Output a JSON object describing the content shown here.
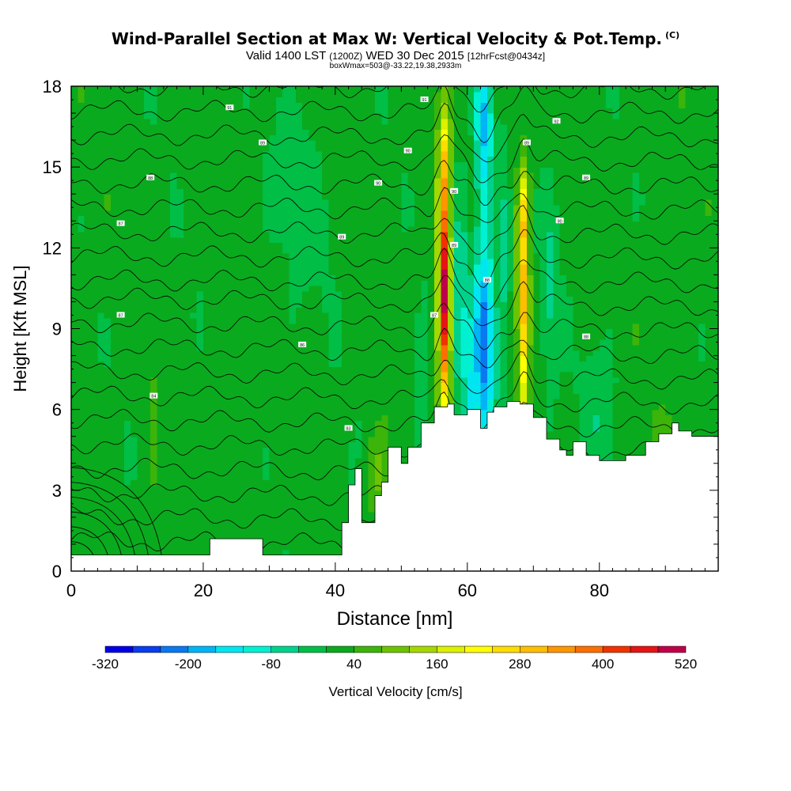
{
  "header": {
    "title": "Wind-Parallel Section at Max W: Vertical Velocity & Pot.Temp.",
    "title_tag": "(C)",
    "valid_main": "Valid 1400 LST",
    "valid_utc": "(1200Z)",
    "valid_date": "WED 30 Dec 2015",
    "forecast": "[12hrFcst@0434z]",
    "box_info": "boxWmax=503@-33.22,19.38,2933m"
  },
  "chart_data": {
    "type": "heatmap",
    "title": "Wind-Parallel Section at Max W: Vertical Velocity & Pot.Temp.",
    "xlabel": "Distance [nm]",
    "ylabel": "Height [Kft MSL]",
    "xlim": [
      0,
      98
    ],
    "ylim": [
      0,
      18
    ],
    "x_ticks": [
      0,
      20,
      40,
      60,
      80
    ],
    "y_ticks": [
      0,
      3,
      6,
      9,
      12,
      15,
      18
    ],
    "colorbar": {
      "label": "Vertical Velocity [cm/s]",
      "tick_labels": [
        "-320",
        "-200",
        "-80",
        "40",
        "160",
        "280",
        "400",
        "520"
      ],
      "levels": [
        -320,
        -280,
        -240,
        -200,
        -160,
        -120,
        -80,
        -40,
        0,
        40,
        80,
        120,
        160,
        200,
        240,
        280,
        320,
        360,
        400,
        440,
        480,
        520
      ],
      "colors": [
        "#0000e6",
        "#0a3cf0",
        "#0a78f0",
        "#00b4f5",
        "#00e6f0",
        "#00f0d2",
        "#00d28c",
        "#00be46",
        "#0aaa1e",
        "#3cb40a",
        "#6ec300",
        "#a5d700",
        "#dcf000",
        "#ffff00",
        "#ffdc00",
        "#ffbe00",
        "#ff9600",
        "#ff6e00",
        "#f03200",
        "#e61414",
        "#be0046"
      ]
    },
    "features": [
      {
        "name": "updraft",
        "x": 56.5,
        "y_range": [
          5,
          17
        ],
        "max_w": 503
      },
      {
        "name": "updraft",
        "x": 68.5,
        "y_range": [
          5,
          15
        ],
        "max_w": 300
      },
      {
        "name": "downdraft",
        "x": 62,
        "y_range": [
          4.5,
          18
        ],
        "min_w": -250
      }
    ],
    "terrain": [
      [
        0,
        0.6
      ],
      [
        20,
        0.6
      ],
      [
        21,
        1.2
      ],
      [
        28,
        1.2
      ],
      [
        29,
        0.6
      ],
      [
        40,
        0.6
      ],
      [
        41,
        1.8
      ],
      [
        42,
        3.2
      ],
      [
        43,
        3.8
      ],
      [
        44,
        1.8
      ],
      [
        45,
        1.8
      ],
      [
        46,
        2.8
      ],
      [
        47,
        3.3
      ],
      [
        48,
        4.6
      ],
      [
        50,
        4.0
      ],
      [
        51,
        4.6
      ],
      [
        53,
        5.5
      ],
      [
        54,
        5.5
      ],
      [
        55,
        6.1
      ],
      [
        57,
        6.2
      ],
      [
        58,
        5.8
      ],
      [
        60,
        6.0
      ],
      [
        62,
        5.3
      ],
      [
        63,
        5.9
      ],
      [
        64,
        6.1
      ],
      [
        66,
        6.3
      ],
      [
        68,
        6.2
      ],
      [
        70,
        5.7
      ],
      [
        72,
        4.9
      ],
      [
        74,
        4.5
      ],
      [
        75,
        4.3
      ],
      [
        76,
        4.8
      ],
      [
        78,
        4.3
      ],
      [
        80,
        4.1
      ],
      [
        84,
        4.3
      ],
      [
        87,
        4.8
      ],
      [
        89,
        5.1
      ],
      [
        91,
        5.5
      ],
      [
        92,
        5.2
      ],
      [
        94,
        5.0
      ],
      [
        97,
        5.0
      ],
      [
        98,
        4.9
      ]
    ],
    "contour_labels": [
      {
        "text": "87",
        "x": 7.5,
        "y": 12.9
      },
      {
        "text": "88",
        "x": 12,
        "y": 14.6
      },
      {
        "text": "91",
        "x": 24,
        "y": 17.2
      },
      {
        "text": "89",
        "x": 29,
        "y": 15.9
      },
      {
        "text": "89",
        "x": 41,
        "y": 12.4
      },
      {
        "text": "90",
        "x": 46.5,
        "y": 14.4
      },
      {
        "text": "90",
        "x": 51,
        "y": 15.6
      },
      {
        "text": "91",
        "x": 53.5,
        "y": 17.5
      },
      {
        "text": "87",
        "x": 7.5,
        "y": 9.5
      },
      {
        "text": "86",
        "x": 35,
        "y": 8.4
      },
      {
        "text": "84",
        "x": 12.5,
        "y": 6.5
      },
      {
        "text": "83",
        "x": 42,
        "y": 5.3
      },
      {
        "text": "87",
        "x": 55,
        "y": 9.5
      },
      {
        "text": "89",
        "x": 58,
        "y": 12.1
      },
      {
        "text": "90",
        "x": 58,
        "y": 14.1
      },
      {
        "text": "88",
        "x": 63,
        "y": 10.8
      },
      {
        "text": "89",
        "x": 69,
        "y": 15.9
      },
      {
        "text": "90",
        "x": 74,
        "y": 13.0
      },
      {
        "text": "92",
        "x": 73.5,
        "y": 16.7
      },
      {
        "text": "89",
        "x": 78,
        "y": 14.6
      },
      {
        "text": "88",
        "x": 78,
        "y": 8.7
      }
    ],
    "grid": false,
    "legend": "none"
  }
}
